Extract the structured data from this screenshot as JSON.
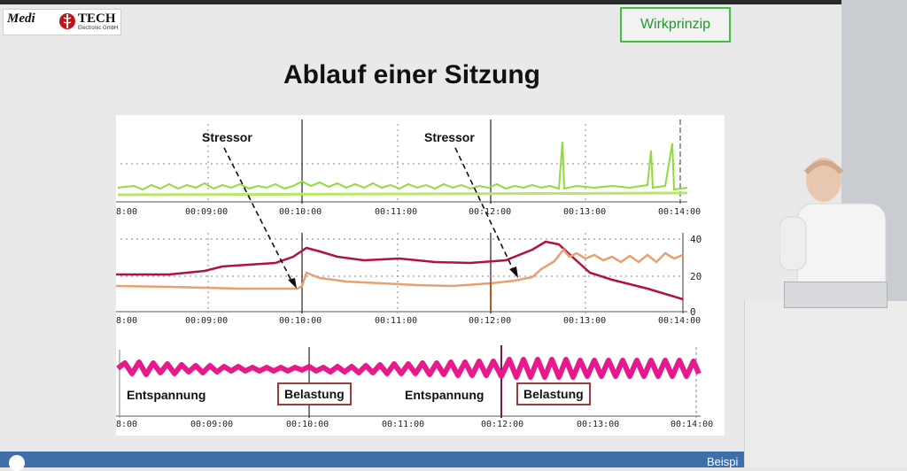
{
  "logo": {
    "medi": "Medi",
    "tech": "TECH",
    "sub": "Electronic GmbH"
  },
  "badge": "Wirkprinzip",
  "title": "Ablauf einer Sitzung",
  "panel1": {
    "stressor_1": "Stressor",
    "stressor_2": "Stressor",
    "ticks": [
      "8:00",
      "00:09:00",
      "00:10:00",
      "00:11:00",
      "00:12:00",
      "00:13:00",
      "00:14:00"
    ]
  },
  "panel2": {
    "ticks": [
      "8:00",
      "00:09:00",
      "00:10:00",
      "00:11:00",
      "00:12:00",
      "00:13:00",
      "00:14:00"
    ],
    "y_ticks": [
      "40",
      "20",
      "0"
    ]
  },
  "panel3": {
    "ticks": [
      "8:00",
      "00:09:00",
      "00:10:00",
      "00:11:00",
      "00:12:00",
      "00:13:00",
      "00:14:00"
    ],
    "phases": [
      {
        "label": "Entspannung",
        "boxed": false
      },
      {
        "label": "Belastung",
        "boxed": true
      },
      {
        "label": "Entspannung",
        "boxed": false
      },
      {
        "label": "Belastung",
        "boxed": true
      }
    ]
  },
  "colors": {
    "green": "#7ed321",
    "red": "#b3123a",
    "orange": "#e8a070",
    "magenta": "#e8198b",
    "badge": "#1f9a2b"
  },
  "footer": {
    "text": "Beispi"
  }
}
